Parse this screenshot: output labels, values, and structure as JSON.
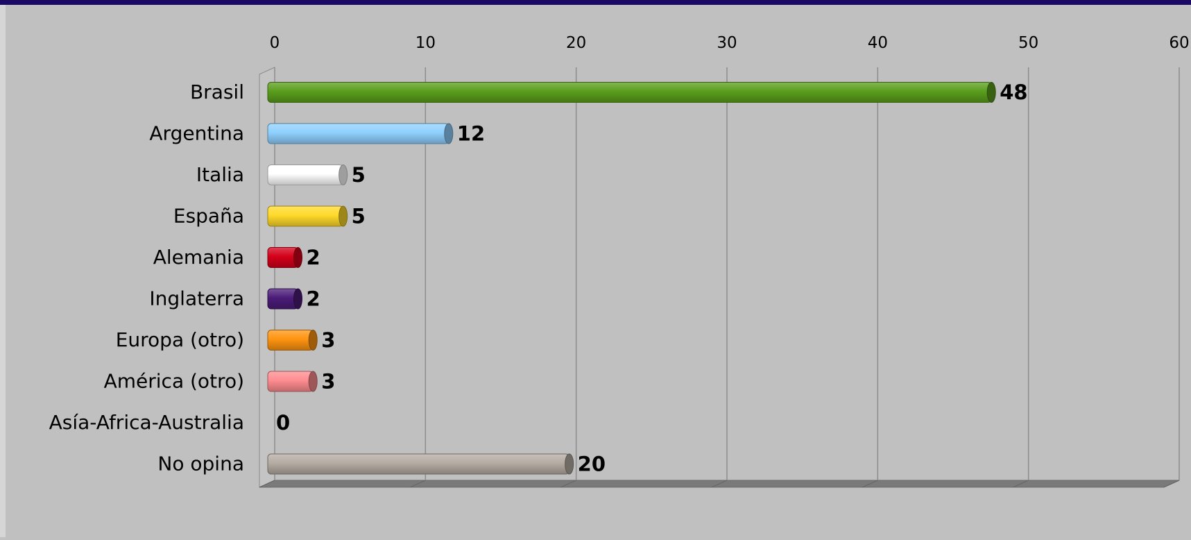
{
  "chart_data": {
    "type": "bar",
    "orientation": "horizontal",
    "style": "3d-cylinder",
    "categories": [
      "Brasil",
      "Argentina",
      "Italia",
      "España",
      "Alemania",
      "Inglaterra",
      "Europa (otro)",
      "América (otro)",
      "Asía-Africa-Australia",
      "No opina"
    ],
    "values": [
      48,
      12,
      5,
      5,
      2,
      2,
      3,
      3,
      0,
      20
    ],
    "bar_colors": [
      "#5a9e1c",
      "#8fd0ff",
      "#ffffff",
      "#ffd92a",
      "#d4001a",
      "#4b1c78",
      "#ff9410",
      "#ff8c90",
      "#c0c0c0",
      "#b5aca3"
    ],
    "xlim": [
      0,
      60
    ],
    "x_ticks": [
      "0",
      "10",
      "20",
      "30",
      "40",
      "50",
      "60"
    ],
    "x_axis_position": "top",
    "grid": true,
    "data_labels": true,
    "title": "",
    "xlabel": "",
    "ylabel": ""
  }
}
